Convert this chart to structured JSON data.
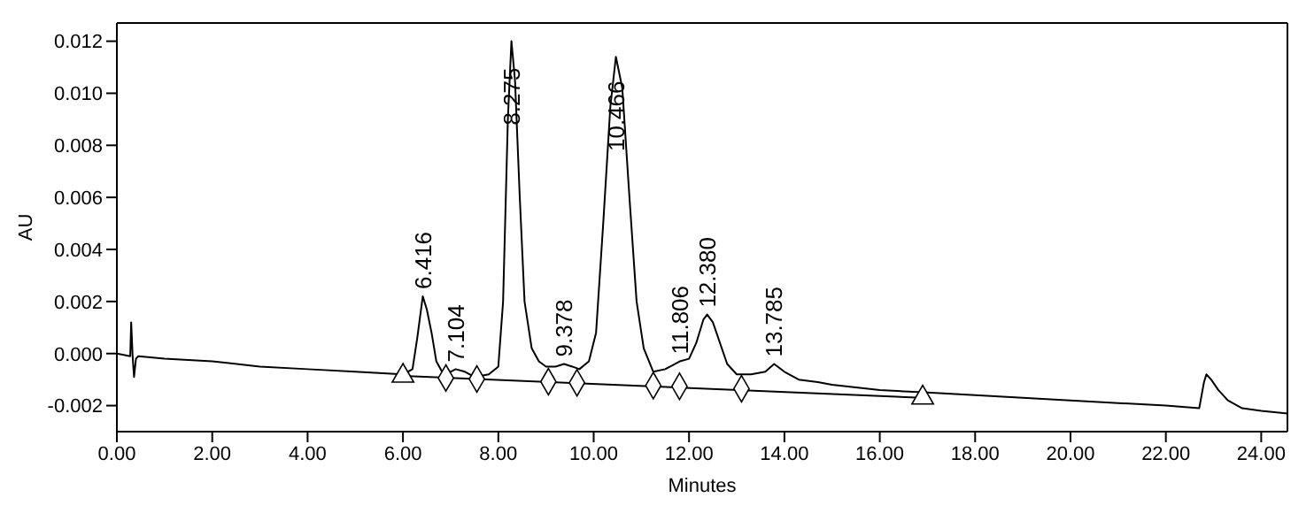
{
  "chart_data": {
    "type": "line",
    "xlabel": "Minutes",
    "ylabel": "AU",
    "xlim": [
      0,
      24.55
    ],
    "ylim": [
      -0.003,
      0.0127
    ],
    "xticks": [
      {
        "value": 0,
        "label": "0.00"
      },
      {
        "value": 2,
        "label": "2.00"
      },
      {
        "value": 4,
        "label": "4.00"
      },
      {
        "value": 6,
        "label": "6.00"
      },
      {
        "value": 8,
        "label": "8.00"
      },
      {
        "value": 10,
        "label": "10.00"
      },
      {
        "value": 12,
        "label": "12.00"
      },
      {
        "value": 14,
        "label": "14.00"
      },
      {
        "value": 16,
        "label": "16.00"
      },
      {
        "value": 18,
        "label": "18.00"
      },
      {
        "value": 20,
        "label": "20.00"
      },
      {
        "value": 22,
        "label": "22.00"
      },
      {
        "value": 24,
        "label": "24.00"
      }
    ],
    "yticks": [
      {
        "value": -0.002,
        "label": "-0.002"
      },
      {
        "value": 0,
        "label": "0.000"
      },
      {
        "value": 0.002,
        "label": "0.002"
      },
      {
        "value": 0.004,
        "label": "0.004"
      },
      {
        "value": 0.006,
        "label": "0.006"
      },
      {
        "value": 0.008,
        "label": "0.008"
      },
      {
        "value": 0.01,
        "label": "0.010"
      },
      {
        "value": 0.012,
        "label": "0.012"
      }
    ],
    "series": [
      {
        "color": "#000000",
        "marker": "none",
        "x": [
          0,
          0.28,
          0.3,
          0.33,
          0.36,
          0.4,
          0.45,
          1,
          2,
          3,
          4,
          5,
          6,
          6.2,
          6.3,
          6.416,
          6.5,
          6.6,
          6.7,
          6.85,
          7.0,
          7.104,
          7.3,
          7.5,
          7.8,
          8.0,
          8.1,
          8.2,
          8.275,
          8.35,
          8.45,
          8.55,
          8.7,
          8.85,
          9.0,
          9.2,
          9.378,
          9.55,
          9.7,
          9.9,
          10.05,
          10.2,
          10.35,
          10.466,
          10.6,
          10.75,
          10.9,
          11.05,
          11.25,
          11.5,
          11.806,
          12.0,
          12.15,
          12.3,
          12.38,
          12.5,
          12.65,
          12.8,
          13.0,
          13.3,
          13.6,
          13.785,
          14.0,
          14.3,
          14.7,
          15,
          16,
          17,
          18,
          19,
          20,
          21,
          22,
          22.7,
          22.8,
          22.85,
          22.95,
          23.1,
          23.3,
          23.6,
          24,
          24.55
        ],
        "values": [
          0,
          -0.0001,
          0.0012,
          -0.0001,
          -0.0009,
          -0.0002,
          -0.0001,
          -0.0002,
          -0.0003,
          -0.0005,
          -0.0006,
          -0.0007,
          -0.0008,
          -0.0006,
          0.0006,
          0.0022,
          0.0017,
          0.0008,
          -0.0003,
          -0.0008,
          -0.0007,
          -0.0006,
          -0.0007,
          -0.0009,
          -0.0008,
          -0.0005,
          0.002,
          0.009,
          0.012,
          0.0105,
          0.006,
          0.002,
          0.0002,
          -0.0003,
          -0.0005,
          -0.0005,
          -0.0004,
          -0.0005,
          -0.0006,
          -0.0003,
          0.0008,
          0.005,
          0.0095,
          0.0114,
          0.0102,
          0.006,
          0.002,
          0.0002,
          -0.0007,
          -0.0006,
          -0.0003,
          -0.0002,
          0.0004,
          0.0013,
          0.0015,
          0.0012,
          0.0004,
          -0.0004,
          -0.0008,
          -0.0008,
          -0.0007,
          -0.0004,
          -0.0007,
          -0.001,
          -0.0011,
          -0.0012,
          -0.0014,
          -0.0015,
          -0.0016,
          -0.0017,
          -0.0018,
          -0.0019,
          -0.002,
          -0.0021,
          -0.0011,
          -0.0008,
          -0.001,
          -0.0014,
          -0.0018,
          -0.0021,
          -0.0022,
          -0.0023
        ]
      },
      {
        "color": "#000000",
        "marker": "none",
        "x": [
          6.0,
          16.9
        ],
        "values": [
          -0.00086,
          -0.0017
        ]
      },
      {
        "type": "scatter",
        "color": "#000000",
        "marker": "triangle",
        "x": [
          6.0,
          16.9
        ],
        "values": [
          -0.00086,
          -0.0017
        ]
      },
      {
        "type": "scatter",
        "color": "#000000",
        "marker": "diamond",
        "x": [
          6.9,
          7.55,
          9.05,
          9.65,
          11.25,
          11.8,
          13.1
        ],
        "values": [
          -0.00094,
          -0.00098,
          -0.00108,
          -0.00112,
          -0.00123,
          -0.00126,
          -0.00135
        ]
      }
    ],
    "annotations": [
      {
        "text": "6.416",
        "x": 6.416,
        "y": 0.0022
      },
      {
        "text": "7.104",
        "x": 7.104,
        "y": -0.0006
      },
      {
        "text": "8.275",
        "x": 8.275,
        "y": 0.0085
      },
      {
        "text": "9.378",
        "x": 9.378,
        "y": -0.0004
      },
      {
        "text": "10.466",
        "x": 10.466,
        "y": 0.0075
      },
      {
        "text": "11.806",
        "x": 11.806,
        "y": -0.0003
      },
      {
        "text": "12.380",
        "x": 12.38,
        "y": 0.0015
      },
      {
        "text": "13.785",
        "x": 13.785,
        "y": -0.0004
      }
    ]
  }
}
